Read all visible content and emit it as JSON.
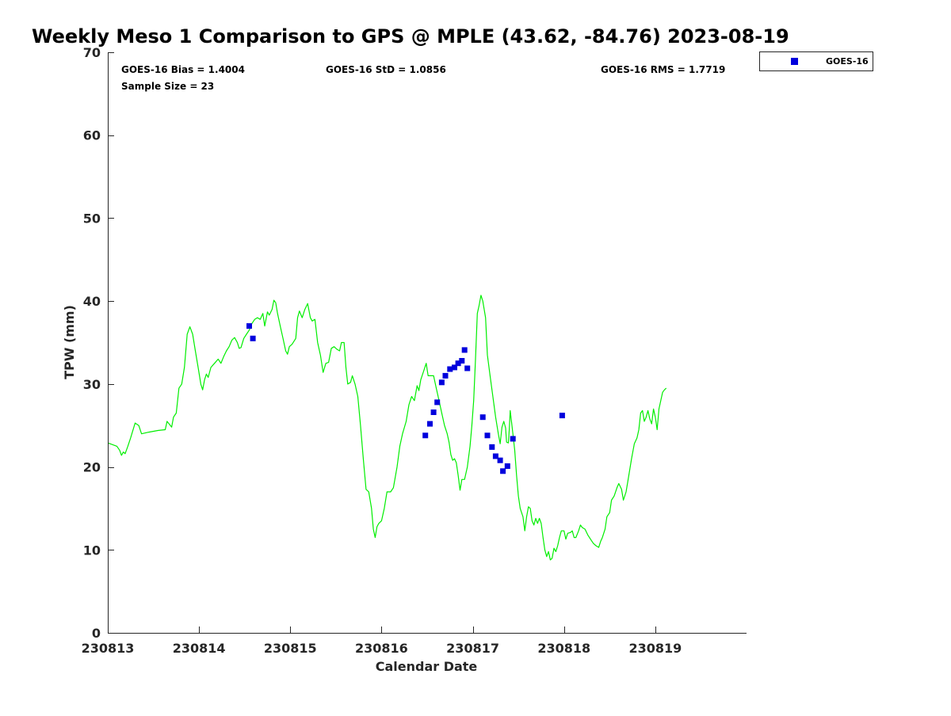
{
  "chart_data": {
    "type": "line+scatter",
    "title": "Weekly Meso 1 Comparison to GPS @ MPLE (43.62, -84.76) 2023-08-19",
    "xlabel": "Calendar Date",
    "ylabel": "TPW (mm)",
    "xlim": [
      0,
      7
    ],
    "ylim": [
      0,
      70
    ],
    "x_ticks": [
      0,
      1,
      2,
      3,
      4,
      5,
      6
    ],
    "x_tick_labels": [
      "230813",
      "230814",
      "230815",
      "230816",
      "230817",
      "230818",
      "230819"
    ],
    "y_ticks": [
      0,
      10,
      20,
      30,
      40,
      50,
      60,
      70
    ],
    "stats": {
      "bias": "GOES-16 Bias = 1.4004",
      "std": "GOES-16 StD = 1.0856",
      "rms": "GOES-16 RMS = 1.7719",
      "sample_size": "Sample Size = 23"
    },
    "legend": {
      "label": "GOES-16",
      "position": "top-right, outside"
    },
    "series": [
      {
        "name": "GPS",
        "kind": "line",
        "color": "#00ee00",
        "points": [
          [
            0.0,
            22.9
          ],
          [
            0.1,
            22.5
          ],
          [
            0.13,
            22.0
          ],
          [
            0.15,
            21.4
          ],
          [
            0.17,
            21.8
          ],
          [
            0.19,
            21.6
          ],
          [
            0.22,
            22.5
          ],
          [
            0.25,
            23.5
          ],
          [
            0.3,
            25.3
          ],
          [
            0.34,
            25.0
          ],
          [
            0.37,
            24.0
          ],
          [
            0.45,
            24.2
          ],
          [
            0.55,
            24.4
          ],
          [
            0.63,
            24.5
          ],
          [
            0.65,
            25.5
          ],
          [
            0.7,
            24.8
          ],
          [
            0.72,
            26.0
          ],
          [
            0.75,
            26.5
          ],
          [
            0.78,
            29.5
          ],
          [
            0.81,
            30.0
          ],
          [
            0.84,
            32.0
          ],
          [
            0.87,
            36.0
          ],
          [
            0.9,
            36.9
          ],
          [
            0.93,
            36.0
          ],
          [
            0.96,
            34.0
          ],
          [
            0.99,
            32.0
          ],
          [
            1.02,
            30.0
          ],
          [
            1.04,
            29.3
          ],
          [
            1.06,
            30.5
          ],
          [
            1.08,
            31.2
          ],
          [
            1.1,
            30.8
          ],
          [
            1.13,
            32.0
          ],
          [
            1.17,
            32.5
          ],
          [
            1.21,
            33.0
          ],
          [
            1.24,
            32.5
          ],
          [
            1.27,
            33.3
          ],
          [
            1.3,
            34.0
          ],
          [
            1.33,
            34.5
          ],
          [
            1.36,
            35.3
          ],
          [
            1.39,
            35.6
          ],
          [
            1.42,
            35.0
          ],
          [
            1.44,
            34.3
          ],
          [
            1.46,
            34.4
          ],
          [
            1.49,
            35.5
          ],
          [
            1.52,
            36.0
          ],
          [
            1.55,
            36.5
          ],
          [
            1.58,
            37.3
          ],
          [
            1.61,
            37.8
          ],
          [
            1.64,
            38.0
          ],
          [
            1.67,
            37.8
          ],
          [
            1.7,
            38.5
          ],
          [
            1.72,
            37.0
          ],
          [
            1.75,
            38.7
          ],
          [
            1.77,
            38.3
          ],
          [
            1.8,
            39.0
          ],
          [
            1.82,
            40.1
          ],
          [
            1.84,
            39.8
          ],
          [
            1.86,
            38.5
          ],
          [
            1.89,
            37.0
          ],
          [
            1.92,
            35.5
          ],
          [
            1.95,
            34.0
          ],
          [
            1.97,
            33.6
          ],
          [
            1.99,
            34.5
          ],
          [
            2.02,
            34.8
          ],
          [
            2.06,
            35.5
          ],
          [
            2.08,
            38.0
          ],
          [
            2.1,
            38.8
          ],
          [
            2.13,
            38.0
          ],
          [
            2.16,
            39.0
          ],
          [
            2.19,
            39.7
          ],
          [
            2.22,
            38.0
          ],
          [
            2.24,
            37.6
          ],
          [
            2.27,
            37.8
          ],
          [
            2.3,
            35.0
          ],
          [
            2.33,
            33.5
          ],
          [
            2.36,
            31.4
          ],
          [
            2.39,
            32.5
          ],
          [
            2.42,
            32.6
          ],
          [
            2.45,
            34.3
          ],
          [
            2.48,
            34.5
          ],
          [
            2.51,
            34.2
          ],
          [
            2.54,
            34.0
          ],
          [
            2.56,
            35.0
          ],
          [
            2.59,
            35.0
          ],
          [
            2.61,
            32.0
          ],
          [
            2.63,
            30.0
          ],
          [
            2.66,
            30.2
          ],
          [
            2.68,
            31.0
          ],
          [
            2.71,
            30.0
          ],
          [
            2.74,
            28.5
          ],
          [
            2.77,
            25.0
          ],
          [
            2.8,
            21.0
          ],
          [
            2.83,
            17.3
          ],
          [
            2.86,
            17.0
          ],
          [
            2.89,
            15.0
          ],
          [
            2.91,
            12.5
          ],
          [
            2.93,
            11.5
          ],
          [
            2.95,
            12.8
          ],
          [
            2.97,
            13.2
          ],
          [
            3.0,
            13.5
          ],
          [
            3.03,
            15.0
          ],
          [
            3.06,
            17.0
          ],
          [
            3.1,
            17.0
          ],
          [
            3.13,
            17.5
          ],
          [
            3.17,
            20.0
          ],
          [
            3.2,
            22.5
          ],
          [
            3.23,
            24.0
          ],
          [
            3.27,
            25.5
          ],
          [
            3.3,
            27.5
          ],
          [
            3.33,
            28.5
          ],
          [
            3.36,
            28.0
          ],
          [
            3.39,
            29.8
          ],
          [
            3.41,
            29.2
          ],
          [
            3.43,
            30.5
          ],
          [
            3.46,
            31.5
          ],
          [
            3.49,
            32.5
          ],
          [
            3.51,
            31.0
          ],
          [
            3.54,
            31.0
          ],
          [
            3.57,
            31.0
          ],
          [
            3.6,
            29.5
          ],
          [
            3.63,
            28.0
          ],
          [
            3.66,
            26.5
          ],
          [
            3.69,
            25.0
          ],
          [
            3.72,
            24.0
          ],
          [
            3.74,
            23.0
          ],
          [
            3.76,
            21.5
          ],
          [
            3.78,
            20.8
          ],
          [
            3.8,
            21.0
          ],
          [
            3.82,
            20.5
          ],
          [
            3.84,
            19.0
          ],
          [
            3.86,
            17.2
          ],
          [
            3.88,
            18.5
          ],
          [
            3.91,
            18.5
          ],
          [
            3.94,
            20.0
          ],
          [
            3.97,
            22.5
          ],
          [
            3.99,
            25.0
          ],
          [
            4.01,
            28.0
          ],
          [
            4.03,
            33.0
          ],
          [
            4.05,
            38.5
          ],
          [
            4.07,
            39.5
          ],
          [
            4.09,
            40.7
          ],
          [
            4.11,
            40.0
          ],
          [
            4.14,
            38.0
          ],
          [
            4.16,
            33.5
          ],
          [
            4.19,
            31.0
          ],
          [
            4.22,
            28.5
          ],
          [
            4.25,
            26.0
          ],
          [
            4.28,
            24.0
          ],
          [
            4.3,
            22.8
          ],
          [
            4.32,
            24.8
          ],
          [
            4.34,
            25.5
          ],
          [
            4.36,
            24.7
          ],
          [
            4.37,
            23.0
          ],
          [
            4.39,
            22.9
          ],
          [
            4.4,
            24.5
          ],
          [
            4.41,
            26.8
          ],
          [
            4.44,
            24.0
          ],
          [
            4.46,
            22.0
          ],
          [
            4.48,
            19.0
          ],
          [
            4.5,
            16.5
          ],
          [
            4.52,
            15.0
          ],
          [
            4.55,
            14.0
          ],
          [
            4.57,
            12.3
          ],
          [
            4.59,
            14.0
          ],
          [
            4.61,
            15.2
          ],
          [
            4.63,
            15.0
          ],
          [
            4.65,
            13.5
          ],
          [
            4.67,
            13.0
          ],
          [
            4.69,
            13.8
          ],
          [
            4.71,
            13.2
          ],
          [
            4.73,
            13.8
          ],
          [
            4.75,
            13.2
          ],
          [
            4.77,
            11.5
          ],
          [
            4.79,
            10.0
          ],
          [
            4.81,
            9.2
          ],
          [
            4.83,
            9.8
          ],
          [
            4.85,
            8.8
          ],
          [
            4.87,
            9.0
          ],
          [
            4.89,
            10.2
          ],
          [
            4.91,
            9.8
          ],
          [
            4.93,
            10.5
          ],
          [
            4.95,
            11.5
          ],
          [
            4.97,
            12.3
          ],
          [
            5.0,
            12.3
          ],
          [
            5.02,
            11.3
          ],
          [
            5.04,
            12.0
          ],
          [
            5.07,
            12.1
          ],
          [
            5.09,
            12.3
          ],
          [
            5.11,
            11.5
          ],
          [
            5.13,
            11.5
          ],
          [
            5.16,
            12.3
          ],
          [
            5.18,
            13.0
          ],
          [
            5.2,
            12.7
          ],
          [
            5.23,
            12.5
          ],
          [
            5.26,
            11.8
          ],
          [
            5.29,
            11.3
          ],
          [
            5.32,
            10.8
          ],
          [
            5.35,
            10.5
          ],
          [
            5.38,
            10.3
          ],
          [
            5.4,
            11.0
          ],
          [
            5.42,
            11.5
          ],
          [
            5.45,
            12.5
          ],
          [
            5.47,
            14.0
          ],
          [
            5.5,
            14.5
          ],
          [
            5.52,
            16.0
          ],
          [
            5.55,
            16.5
          ],
          [
            5.58,
            17.5
          ],
          [
            5.6,
            18.0
          ],
          [
            5.63,
            17.3
          ],
          [
            5.65,
            16.0
          ],
          [
            5.68,
            17.0
          ],
          [
            5.71,
            19.0
          ],
          [
            5.74,
            21.0
          ],
          [
            5.77,
            22.8
          ],
          [
            5.8,
            23.5
          ],
          [
            5.82,
            24.5
          ],
          [
            5.84,
            26.5
          ],
          [
            5.86,
            26.8
          ],
          [
            5.88,
            25.5
          ],
          [
            5.9,
            26.0
          ],
          [
            5.92,
            26.8
          ],
          [
            5.94,
            25.8
          ],
          [
            5.96,
            25.2
          ],
          [
            5.98,
            27.0
          ],
          [
            6.0,
            26.0
          ],
          [
            6.02,
            24.5
          ],
          [
            6.04,
            27.0
          ],
          [
            6.06,
            28.0
          ],
          [
            6.08,
            29.0
          ],
          [
            6.1,
            29.3
          ],
          [
            6.12,
            29.5
          ]
        ]
      },
      {
        "name": "GOES-16",
        "kind": "scatter",
        "color": "#0000dd",
        "points": [
          [
            1.55,
            37.0
          ],
          [
            1.59,
            35.5
          ],
          [
            3.48,
            23.8
          ],
          [
            3.53,
            25.2
          ],
          [
            3.57,
            26.6
          ],
          [
            3.61,
            27.8
          ],
          [
            3.66,
            30.2
          ],
          [
            3.7,
            31.0
          ],
          [
            3.75,
            31.8
          ],
          [
            3.8,
            32.0
          ],
          [
            3.84,
            32.5
          ],
          [
            3.88,
            32.8
          ],
          [
            3.91,
            34.1
          ],
          [
            3.94,
            31.9
          ],
          [
            4.11,
            26.0
          ],
          [
            4.16,
            23.8
          ],
          [
            4.21,
            22.4
          ],
          [
            4.25,
            21.3
          ],
          [
            4.3,
            20.8
          ],
          [
            4.33,
            19.5
          ],
          [
            4.38,
            20.1
          ],
          [
            4.44,
            23.4
          ],
          [
            4.98,
            26.2
          ]
        ]
      }
    ]
  }
}
